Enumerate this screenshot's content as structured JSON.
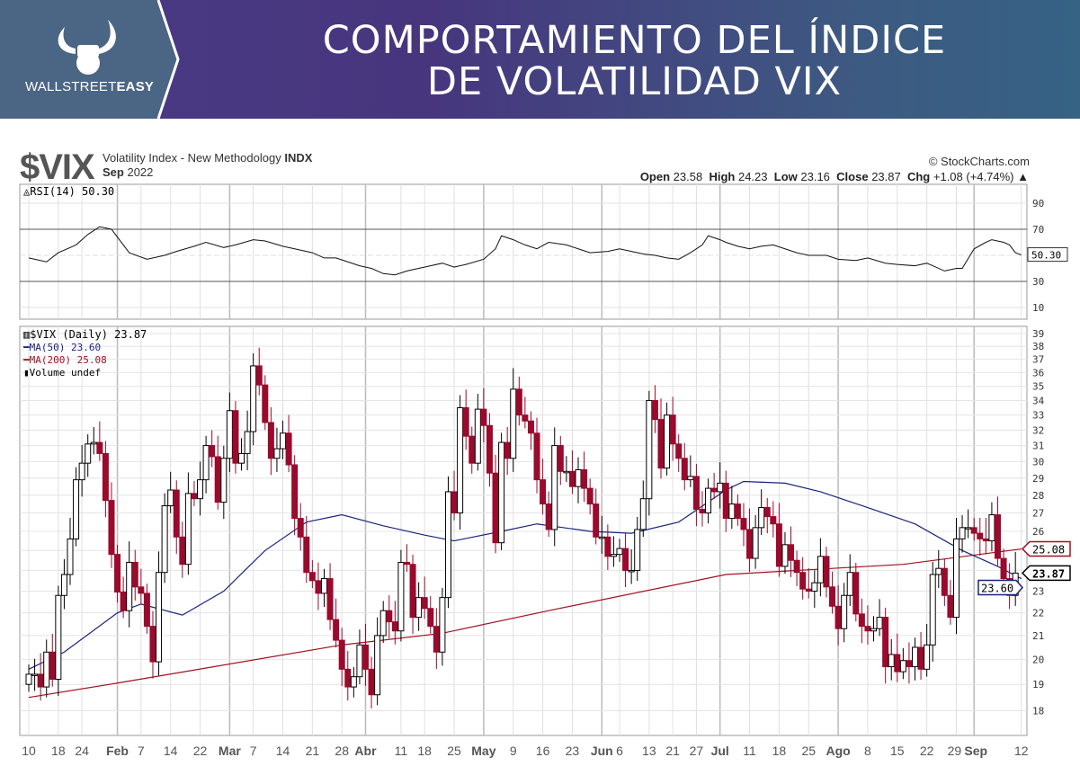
{
  "banner": {
    "title_line1": "COMPORTAMIENTO DEL ÍNDICE",
    "title_line2": "DE VOLATILIDAD VIX",
    "brand_light": "WALLSTREET",
    "brand_bold": "EASY"
  },
  "header": {
    "symbol": "$VIX",
    "description": "Volatility Index - New Methodology",
    "exchange": "INDX",
    "period_bold": "Sep",
    "period_year": "2022",
    "copyright": "© StockCharts.com",
    "open_label": "Open",
    "open": "23.58",
    "high_label": "High",
    "high": "24.23",
    "low_label": "Low",
    "low": "23.16",
    "close_label": "Close",
    "close": "23.87",
    "chg_label": "Chg",
    "chg": "+1.08 (+4.74%)"
  },
  "colors": {
    "down": "#990a2c",
    "up": "#000000",
    "ma50": "#1a237e",
    "ma200": "#a01020",
    "banner_logo": "#4b6584"
  },
  "chart_data": [
    {
      "type": "line",
      "title": "RSI(14) 50.30",
      "legend": "RSI(14) 50.30",
      "ylim": [
        0,
        100
      ],
      "yticks": [
        10,
        30,
        50,
        70,
        90
      ],
      "lines": [
        30,
        70
      ],
      "last_value": "50.30",
      "points": [
        [
          0,
          48
        ],
        [
          3,
          45
        ],
        [
          5,
          52
        ],
        [
          8,
          58
        ],
        [
          10,
          66
        ],
        [
          12,
          72
        ],
        [
          14,
          70
        ],
        [
          17,
          52
        ],
        [
          20,
          47
        ],
        [
          23,
          50
        ],
        [
          25,
          53
        ],
        [
          28,
          57
        ],
        [
          30,
          60
        ],
        [
          33,
          56
        ],
        [
          35,
          58
        ],
        [
          38,
          62
        ],
        [
          40,
          61
        ],
        [
          43,
          57
        ],
        [
          45,
          55
        ],
        [
          48,
          52
        ],
        [
          50,
          48
        ],
        [
          52,
          48
        ],
        [
          54,
          45
        ],
        [
          56,
          42
        ],
        [
          58,
          40
        ],
        [
          60,
          36
        ],
        [
          62,
          35
        ],
        [
          64,
          38
        ],
        [
          66,
          40
        ],
        [
          68,
          42
        ],
        [
          70,
          44
        ],
        [
          72,
          41
        ],
        [
          74,
          43
        ],
        [
          77,
          47
        ],
        [
          79,
          55
        ],
        [
          80,
          65
        ],
        [
          82,
          62
        ],
        [
          84,
          58
        ],
        [
          86,
          55
        ],
        [
          88,
          60
        ],
        [
          91,
          58
        ],
        [
          93,
          55
        ],
        [
          95,
          52
        ],
        [
          98,
          53
        ],
        [
          100,
          55
        ],
        [
          102,
          53
        ],
        [
          104,
          51
        ],
        [
          106,
          50
        ],
        [
          108,
          48
        ],
        [
          110,
          47
        ],
        [
          112,
          52
        ],
        [
          114,
          58
        ],
        [
          115,
          65
        ],
        [
          117,
          62
        ],
        [
          118,
          60
        ],
        [
          120,
          57
        ],
        [
          122,
          55
        ],
        [
          124,
          57
        ],
        [
          126,
          58
        ],
        [
          128,
          55
        ],
        [
          130,
          52
        ],
        [
          132,
          50
        ],
        [
          135,
          50
        ],
        [
          137,
          47
        ],
        [
          140,
          46
        ],
        [
          142,
          48
        ],
        [
          145,
          44
        ],
        [
          147,
          43
        ],
        [
          150,
          42
        ],
        [
          152,
          44
        ],
        [
          155,
          38
        ],
        [
          157,
          40
        ],
        [
          158,
          40
        ],
        [
          160,
          55
        ],
        [
          162,
          60
        ],
        [
          163,
          62
        ],
        [
          165,
          60
        ],
        [
          166,
          58
        ],
        [
          167,
          52
        ],
        [
          168,
          50.3
        ]
      ]
    },
    {
      "type": "candlestick",
      "title": "$VIX (Daily) 23.87",
      "legend": [
        "$VIX (Daily) 23.87",
        "MA(50) 23.60",
        "MA(200) 25.08",
        "Volume undef"
      ],
      "scale": "log",
      "ylim": [
        18,
        39
      ],
      "yticks": [
        18,
        19,
        20,
        21,
        22,
        23,
        24,
        25,
        26,
        27,
        28,
        29,
        30,
        31,
        32,
        33,
        34,
        35,
        36,
        37,
        38,
        39
      ],
      "ytick_labels": [
        "18",
        "19",
        "20",
        "21",
        "22",
        "23",
        "",
        "",
        "26",
        "27",
        "28",
        "29",
        "30",
        "31",
        "32",
        "33",
        "34",
        "35",
        "36",
        "37",
        "38",
        "39"
      ],
      "tags": {
        "ma200": "25.08",
        "close": "23.87",
        "ma50": "23.60"
      },
      "closes": [
        19.4,
        19.4,
        18.9,
        20.3,
        19.2,
        22.8,
        23.8,
        25.6,
        28.9,
        29.9,
        31.1,
        31.2,
        30.5,
        27.7,
        24.8,
        22.96,
        22.1,
        24.4,
        23.2,
        22.9,
        21.4,
        19.9,
        23.9,
        27.4,
        28.3,
        25.7,
        24.3,
        28.1,
        27.8,
        28.9,
        31.0,
        30.3,
        27.6,
        30.2,
        33.3,
        29.9,
        30.5,
        31.9,
        36.5,
        35.1,
        32.5,
        30.2,
        30.8,
        31.8,
        29.8,
        26.7,
        25.7,
        23.9,
        23.5,
        22.9,
        23.6,
        21.7,
        20.8,
        19.6,
        18.9,
        19.3,
        20.6,
        19.6,
        18.6,
        21.0,
        22.1,
        21.6,
        21.2,
        24.4,
        24.3,
        21.8,
        22.7,
        22.2,
        21.4,
        20.3,
        22.7,
        28.2,
        27.0,
        33.5,
        31.6,
        29.9,
        33.4,
        32.3,
        29.3,
        25.4,
        31.2,
        30.2,
        34.8,
        33.0,
        32.6,
        31.8,
        28.9,
        27.5,
        26.1,
        31.0,
        29.4,
        29.4,
        28.5,
        29.5,
        28.4,
        27.5,
        25.7,
        25.7,
        24.7,
        24.8,
        25.1,
        24.0,
        24.0,
        26.1,
        27.8,
        34.0,
        32.7,
        29.6,
        33.0,
        31.1,
        30.2,
        28.9,
        29.1,
        27.2,
        27.0,
        28.4,
        28.2,
        28.7,
        26.7,
        27.5,
        26.7,
        26.1,
        24.6,
        26.2,
        27.3,
        26.8,
        26.4,
        24.2,
        25.3,
        24.5,
        23.9,
        23.1,
        23.0,
        23.4,
        24.7,
        23.2,
        22.3,
        21.3,
        22.8,
        23.9,
        21.95,
        21.4,
        21.2,
        21.3,
        21.8,
        19.7,
        20.2,
        19.5,
        19.95,
        19.7,
        20.5,
        19.6,
        20.6,
        23.8,
        24.1,
        22.8,
        21.8,
        25.6,
        26.2,
        26.2,
        25.9,
        25.6,
        25.5,
        26.9,
        24.6,
        23.6,
        22.8,
        23.87
      ],
      "first_open": 19.0,
      "ma50": [
        [
          0,
          19.6
        ],
        [
          6,
          20.3
        ],
        [
          15,
          22.0
        ],
        [
          19,
          22.4
        ],
        [
          26,
          21.9
        ],
        [
          33,
          23.0
        ],
        [
          40,
          25.0
        ],
        [
          47,
          26.5
        ],
        [
          53,
          26.9
        ],
        [
          60,
          26.3
        ],
        [
          67,
          25.8
        ],
        [
          72,
          25.5
        ],
        [
          80,
          26.0
        ],
        [
          86,
          26.4
        ],
        [
          95,
          26.0
        ],
        [
          102,
          25.9
        ],
        [
          110,
          26.5
        ],
        [
          118,
          28.3
        ],
        [
          121,
          28.8
        ],
        [
          128,
          28.7
        ],
        [
          134,
          28.2
        ],
        [
          142,
          27.3
        ],
        [
          150,
          26.4
        ],
        [
          158,
          25.0
        ],
        [
          164,
          24.2
        ],
        [
          168,
          23.6
        ]
      ],
      "ma200": [
        [
          0,
          18.5
        ],
        [
          15,
          19.05
        ],
        [
          53,
          20.6
        ],
        [
          70,
          21.1
        ],
        [
          88,
          22.1
        ],
        [
          118,
          23.8
        ],
        [
          148,
          24.3
        ],
        [
          168,
          25.08
        ]
      ],
      "x_labels": [
        {
          "t": "10",
          "i": 0
        },
        {
          "t": "18",
          "i": 5
        },
        {
          "t": "24",
          "i": 9
        },
        {
          "t": "Feb",
          "i": 15,
          "b": 1
        },
        {
          "t": "7",
          "i": 19
        },
        {
          "t": "14",
          "i": 24
        },
        {
          "t": "22",
          "i": 29
        },
        {
          "t": "Mar",
          "i": 34,
          "b": 1
        },
        {
          "t": "7",
          "i": 38
        },
        {
          "t": "14",
          "i": 43
        },
        {
          "t": "21",
          "i": 48
        },
        {
          "t": "28",
          "i": 53
        },
        {
          "t": "Abr",
          "i": 57,
          "b": 1
        },
        {
          "t": "11",
          "i": 63
        },
        {
          "t": "18",
          "i": 67
        },
        {
          "t": "25",
          "i": 72
        },
        {
          "t": "May",
          "i": 77,
          "b": 1
        },
        {
          "t": "9",
          "i": 82
        },
        {
          "t": "16",
          "i": 87
        },
        {
          "t": "23",
          "i": 92
        },
        {
          "t": "Jun",
          "i": 97,
          "b": 1
        },
        {
          "t": "6",
          "i": 100
        },
        {
          "t": "13",
          "i": 105
        },
        {
          "t": "21",
          "i": 109
        },
        {
          "t": "27",
          "i": 113
        },
        {
          "t": "Jul",
          "i": 117,
          "b": 1
        },
        {
          "t": "11",
          "i": 122
        },
        {
          "t": "18",
          "i": 127
        },
        {
          "t": "25",
          "i": 132
        },
        {
          "t": "Ago",
          "i": 137,
          "b": 1
        },
        {
          "t": "8",
          "i": 142
        },
        {
          "t": "15",
          "i": 147
        },
        {
          "t": "22",
          "i": 152
        },
        {
          "t": "29",
          "i": 157
        },
        {
          "t": "Sep",
          "i": 160,
          "b": 1
        },
        {
          "t": "12",
          "i": 168
        }
      ]
    }
  ]
}
